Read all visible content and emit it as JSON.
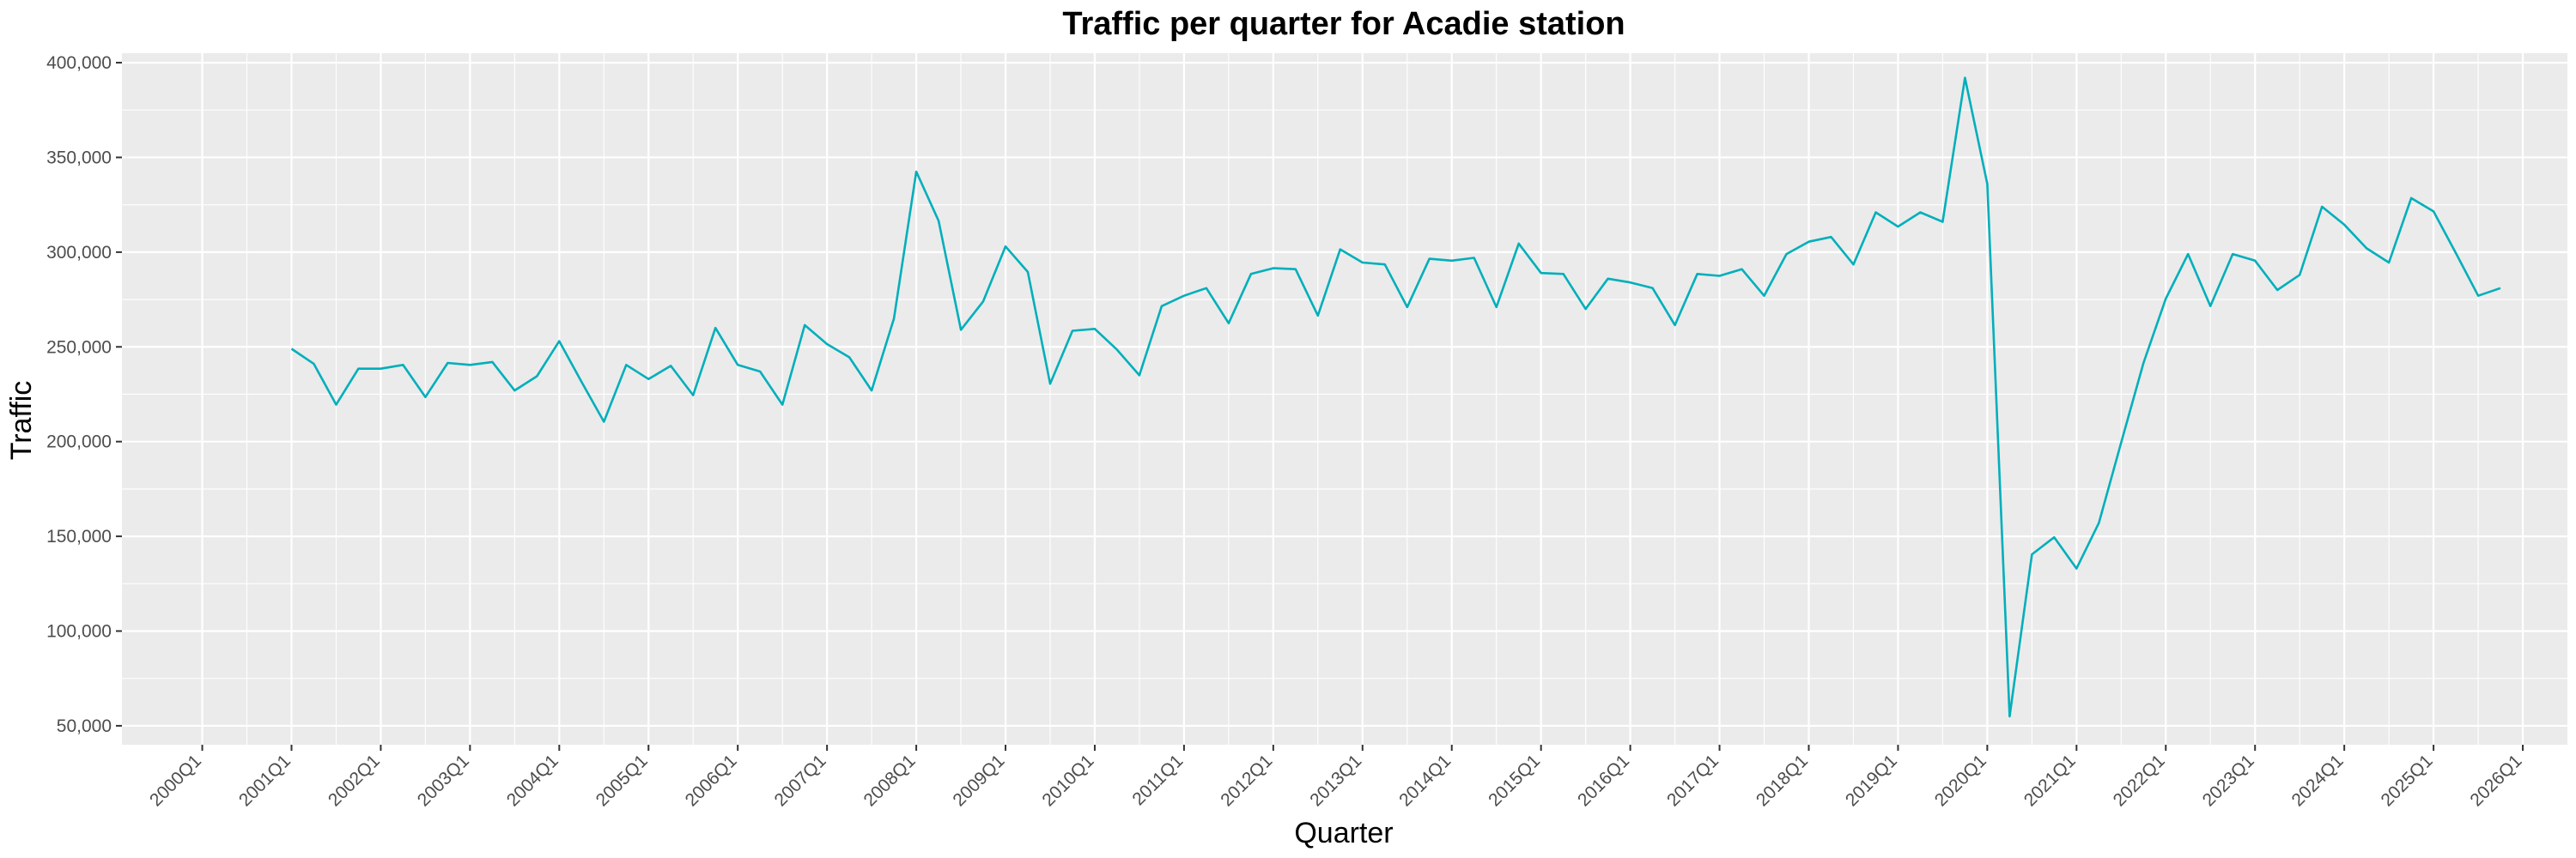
{
  "chart_data": {
    "type": "line",
    "title": "Traffic per quarter for Acadie station",
    "xlabel": "Quarter",
    "ylabel": "Traffic",
    "x_ticks": [
      "2000Q1",
      "2001Q1",
      "2002Q1",
      "2003Q1",
      "2004Q1",
      "2005Q1",
      "2006Q1",
      "2007Q1",
      "2008Q1",
      "2009Q1",
      "2010Q1",
      "2011Q1",
      "2012Q1",
      "2013Q1",
      "2014Q1",
      "2015Q1",
      "2016Q1",
      "2017Q1",
      "2018Q1",
      "2019Q1",
      "2020Q1",
      "2021Q1",
      "2022Q1",
      "2023Q1",
      "2024Q1",
      "2025Q1",
      "2026Q1"
    ],
    "y_ticks": [
      "50,000",
      "100,000",
      "150,000",
      "200,000",
      "250,000",
      "300,000",
      "350,000",
      "400,000"
    ],
    "y_tick_values": [
      50000,
      100000,
      150000,
      200000,
      250000,
      300000,
      350000,
      400000
    ],
    "ylim": [
      40000,
      405000
    ],
    "x_range_years": [
      1999.1,
      2026.5
    ],
    "grid": true,
    "line_color": "#00AFBB",
    "panel_color": "#EBEBEB",
    "series": [
      {
        "x": [
          "2001Q1",
          "2001Q2",
          "2001Q3",
          "2001Q4",
          "2002Q1",
          "2002Q2",
          "2002Q3",
          "2002Q4",
          "2003Q1",
          "2003Q2",
          "2003Q3",
          "2003Q4",
          "2004Q1",
          "2004Q2",
          "2004Q3",
          "2004Q4",
          "2005Q1",
          "2005Q2",
          "2005Q3",
          "2005Q4",
          "2006Q1",
          "2006Q2",
          "2006Q3",
          "2006Q4",
          "2007Q1",
          "2007Q2",
          "2007Q3",
          "2007Q4",
          "2008Q1",
          "2008Q2",
          "2008Q3",
          "2008Q4",
          "2009Q1",
          "2009Q2",
          "2009Q3",
          "2009Q4",
          "2010Q1",
          "2010Q2",
          "2010Q3",
          "2010Q4",
          "2011Q1",
          "2011Q2",
          "2011Q3",
          "2011Q4",
          "2012Q1",
          "2012Q2",
          "2012Q3",
          "2012Q4",
          "2013Q1",
          "2013Q2",
          "2013Q3",
          "2013Q4",
          "2014Q1",
          "2014Q2",
          "2014Q3",
          "2014Q4",
          "2015Q1",
          "2015Q2",
          "2015Q3",
          "2015Q4",
          "2016Q1",
          "2016Q2",
          "2016Q3",
          "2016Q4",
          "2017Q1",
          "2017Q2",
          "2017Q3",
          "2017Q4",
          "2018Q1",
          "2018Q2",
          "2018Q3",
          "2018Q4",
          "2019Q1",
          "2019Q2",
          "2019Q3",
          "2019Q4",
          "2020Q1",
          "2020Q2",
          "2020Q3",
          "2020Q4",
          "2021Q1",
          "2021Q2",
          "2021Q3",
          "2021Q4",
          "2022Q1",
          "2022Q2",
          "2022Q3",
          "2022Q4",
          "2023Q1",
          "2023Q2",
          "2023Q3",
          "2023Q4",
          "2024Q1",
          "2024Q2",
          "2024Q3",
          "2024Q4",
          "2025Q1",
          "2025Q2",
          "2025Q3",
          "2025Q4"
        ],
        "values": [
          249000,
          241000,
          219500,
          238500,
          238500,
          240500,
          223500,
          241500,
          240500,
          242000,
          227000,
          234500,
          253000,
          231500,
          210500,
          240500,
          233000,
          240000,
          224500,
          260000,
          240500,
          237000,
          219500,
          261500,
          251500,
          244500,
          227000,
          265000,
          342500,
          316500,
          259000,
          274000,
          303000,
          289500,
          230500,
          258500,
          259500,
          248500,
          235000,
          271500,
          277000,
          281000,
          262500,
          288500,
          291500,
          291000,
          266500,
          301500,
          294500,
          293500,
          271000,
          296500,
          295500,
          297000,
          271000,
          304500,
          289000,
          288500,
          270000,
          286000,
          284000,
          281000,
          261500,
          288500,
          287500,
          291000,
          277000,
          299000,
          305500,
          308000,
          293500,
          321000,
          313500,
          321000,
          316000,
          392000,
          336000,
          55000,
          140500,
          149500,
          133000,
          157000,
          199500,
          241500,
          275500,
          299000,
          271500,
          299000,
          295500,
          280000,
          288000,
          324000,
          314500,
          302000,
          294500,
          328500,
          321500,
          299500,
          277000,
          281000
        ]
      }
    ]
  }
}
